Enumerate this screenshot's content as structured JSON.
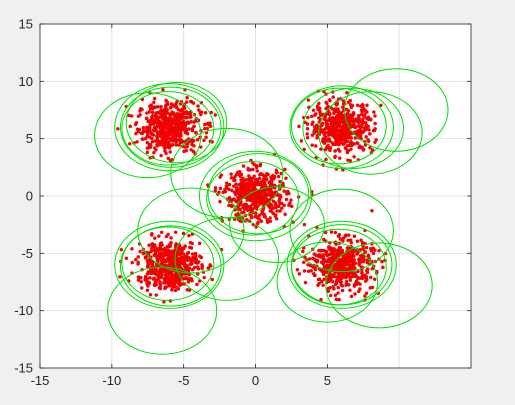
{
  "chart_data": {
    "type": "scatter",
    "title": "",
    "xlabel": "",
    "ylabel": "",
    "xlim": [
      -15,
      15
    ],
    "ylim": [
      -15,
      15
    ],
    "xticks": [
      -15,
      -10,
      -5,
      0,
      5
    ],
    "yticks": [
      -15,
      -10,
      -5,
      0,
      5,
      10,
      15
    ],
    "grid": true,
    "legend": "none",
    "colors": {
      "points": "#ff0000",
      "points_edge": "#cc0000",
      "circles": "#00e000",
      "grid": "#e3e3e3",
      "axes": "#262626",
      "plot_bg": "#ffffff",
      "figure_bg": "#f0f0f0"
    },
    "clusters": [
      {
        "center": [
          -6,
          6
        ],
        "spread": 1.1,
        "count": 520
      },
      {
        "center": [
          6,
          6
        ],
        "spread": 1.1,
        "count": 520
      },
      {
        "center": [
          0,
          0
        ],
        "spread": 1.1,
        "count": 520
      },
      {
        "center": [
          -6,
          -6
        ],
        "spread": 1.1,
        "count": 520
      },
      {
        "center": [
          6,
          -6
        ],
        "spread": 1.1,
        "count": 520
      }
    ],
    "circles": [
      {
        "center": [
          -6,
          6
        ],
        "radius": 3.8
      },
      {
        "center": [
          -5.9,
          6.0
        ],
        "radius": 3.5
      },
      {
        "center": [
          -6.1,
          5.9
        ],
        "radius": 3.2
      },
      {
        "center": [
          -7.5,
          5.3
        ],
        "radius": 3.7
      },
      {
        "center": [
          -5.5,
          6.4
        ],
        "radius": 3.5
      },
      {
        "center": [
          6,
          6
        ],
        "radius": 3.6
      },
      {
        "center": [
          5.8,
          6.1
        ],
        "radius": 3.3
      },
      {
        "center": [
          6.8,
          5.9
        ],
        "radius": 3.5
      },
      {
        "center": [
          9.8,
          7.5
        ],
        "radius": 3.6
      },
      {
        "center": [
          8.0,
          5.5
        ],
        "radius": 3.6
      },
      {
        "center": [
          0,
          0
        ],
        "radius": 3.9
      },
      {
        "center": [
          0.2,
          0.2
        ],
        "radius": 3.5
      },
      {
        "center": [
          -0.2,
          -0.2
        ],
        "radius": 3.2
      },
      {
        "center": [
          -2.0,
          2.0
        ],
        "radius": 3.9
      },
      {
        "center": [
          1.5,
          -2.5
        ],
        "radius": 3.3
      },
      {
        "center": [
          -6,
          -6
        ],
        "radius": 3.8
      },
      {
        "center": [
          -5.9,
          -6.1
        ],
        "radius": 3.5
      },
      {
        "center": [
          -6.1,
          -5.9
        ],
        "radius": 3.2
      },
      {
        "center": [
          -4.5,
          -3.0
        ],
        "radius": 3.7
      },
      {
        "center": [
          -2.0,
          -5.5
        ],
        "radius": 3.6
      },
      {
        "center": [
          -6.5,
          -10.0
        ],
        "radius": 3.8
      },
      {
        "center": [
          6,
          -6
        ],
        "radius": 3.8
      },
      {
        "center": [
          6.0,
          -6.0
        ],
        "radius": 3.5
      },
      {
        "center": [
          5.8,
          -6.2
        ],
        "radius": 3.3
      },
      {
        "center": [
          6.0,
          -3.0
        ],
        "radius": 3.6
      },
      {
        "center": [
          8.6,
          -7.8
        ],
        "radius": 3.7
      },
      {
        "center": [
          5.0,
          -7.5
        ],
        "radius": 3.5
      }
    ]
  }
}
